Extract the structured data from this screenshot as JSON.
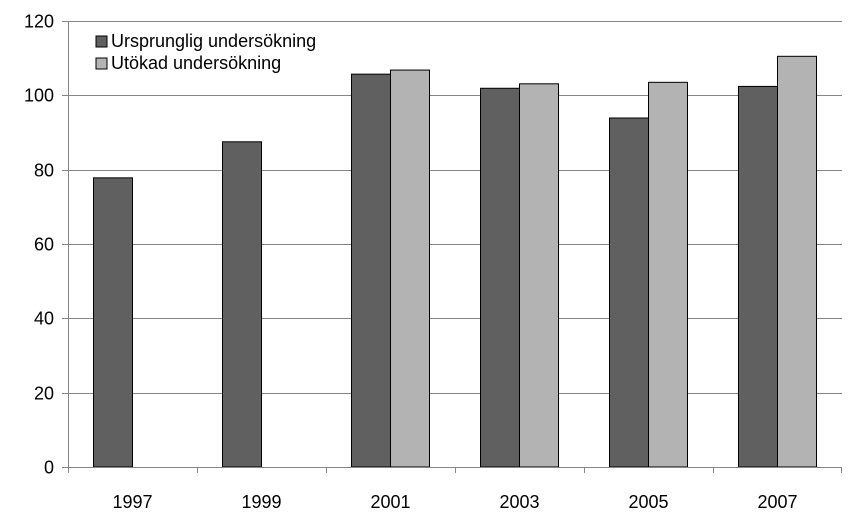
{
  "chart_data": {
    "type": "bar",
    "categories": [
      "1997",
      "1999",
      "2001",
      "2003",
      "2005",
      "2007"
    ],
    "series": [
      {
        "name": "Ursprunglig undersökning",
        "color": "#606060",
        "values": [
          77.8,
          87.5,
          105.7,
          101.9,
          93.9,
          102.4
        ]
      },
      {
        "name": "Utökad undersökning",
        "color": "#b3b3b3",
        "values": [
          null,
          null,
          106.8,
          103.1,
          103.5,
          110.5
        ]
      }
    ],
    "ylim": [
      0,
      120
    ],
    "yticks": [
      "0",
      "20",
      "40",
      "60",
      "80",
      "100",
      "120"
    ],
    "grid": true,
    "legend_position": "top-left",
    "title": "",
    "xlabel": "",
    "ylabel": ""
  }
}
